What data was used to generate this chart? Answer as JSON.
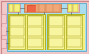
{
  "outer_bg": "#f2c8c8",
  "outer_border": "#cc8888",
  "main_bg": "#aaddee",
  "main_border": "#55aacc",
  "yellow_fill": "#f5f080",
  "yellow_border": "#aaaa00",
  "yellow_inner_fill": "#f8f5a0",
  "yellow_inner_border": "#999900",
  "orange_fill": "#f0a878",
  "orange_border": "#cc7744",
  "pink_fill": "#f5cccc",
  "pink_border": "#cc8888",
  "pink2_fill": "#ffaaaa",
  "pink2_border": "#dd6666",
  "side_fill": "#f5cccc",
  "side_border": "#cc8888",
  "line_col": "#555555",
  "red_fill": "#ee6644",
  "red_border": "#cc3322"
}
